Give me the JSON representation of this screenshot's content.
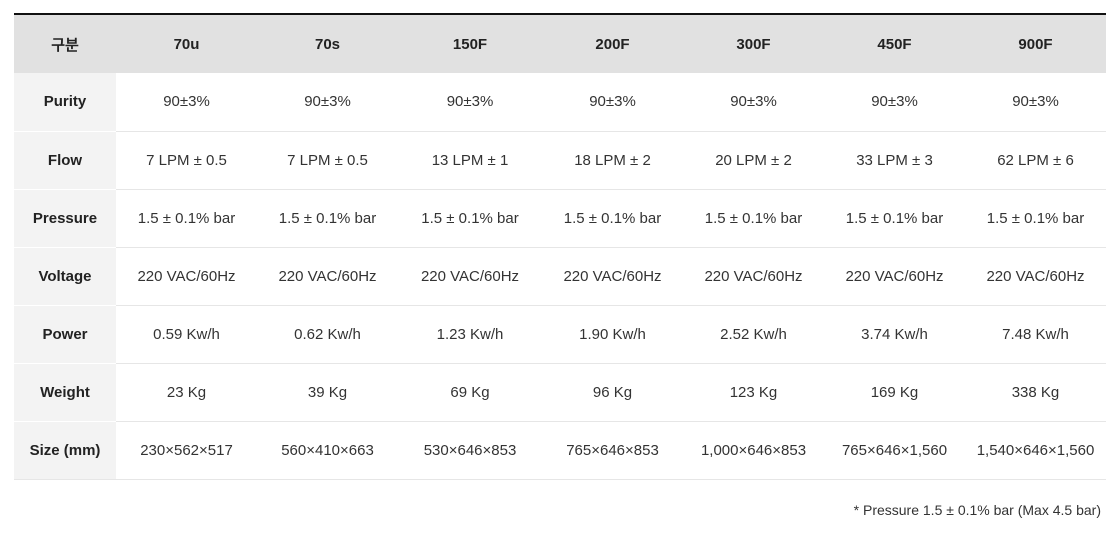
{
  "table": {
    "header": {
      "label": "구분",
      "models": [
        "70u",
        "70s",
        "150F",
        "200F",
        "300F",
        "450F",
        "900F"
      ]
    },
    "rows": [
      {
        "label": "Purity",
        "values": [
          "90±3%",
          "90±3%",
          "90±3%",
          "90±3%",
          "90±3%",
          "90±3%",
          "90±3%"
        ]
      },
      {
        "label": "Flow",
        "values": [
          "7 LPM ± 0.5",
          "7 LPM ± 0.5",
          "13 LPM ± 1",
          "18 LPM ± 2",
          "20 LPM ± 2",
          "33 LPM ± 3",
          "62 LPM ± 6"
        ]
      },
      {
        "label": "Pressure",
        "values": [
          "1.5 ± 0.1% bar",
          "1.5 ± 0.1% bar",
          "1.5 ± 0.1% bar",
          "1.5 ± 0.1% bar",
          "1.5 ± 0.1% bar",
          "1.5 ± 0.1% bar",
          "1.5 ± 0.1% bar"
        ]
      },
      {
        "label": "Voltage",
        "values": [
          "220 VAC/60Hz",
          "220 VAC/60Hz",
          "220 VAC/60Hz",
          "220 VAC/60Hz",
          "220 VAC/60Hz",
          "220 VAC/60Hz",
          "220 VAC/60Hz"
        ]
      },
      {
        "label": "Power",
        "values": [
          "0.59 Kw/h",
          "0.62 Kw/h",
          "1.23 Kw/h",
          "1.90 Kw/h",
          "2.52 Kw/h",
          "3.74 Kw/h",
          "7.48 Kw/h"
        ]
      },
      {
        "label": "Weight",
        "values": [
          "23 Kg",
          "39 Kg",
          "69 Kg",
          "96 Kg",
          "123 Kg",
          "169 Kg",
          "338 Kg"
        ]
      },
      {
        "label": "Size (mm)",
        "values": [
          "230×562×517",
          "560×410×663",
          "530×646×853",
          "765×646×853",
          "1,000×646×853",
          "765×646×1,560",
          "1,540×646×1,560"
        ]
      }
    ]
  },
  "footnote": "* Pressure 1.5 ± 0.1% bar (Max 4.5 bar)",
  "colors": {
    "header_bg": "#e1e1e1",
    "row_label_bg": "#f3f3f3",
    "top_rule": "#111111",
    "row_divider": "#e6e6e6"
  }
}
